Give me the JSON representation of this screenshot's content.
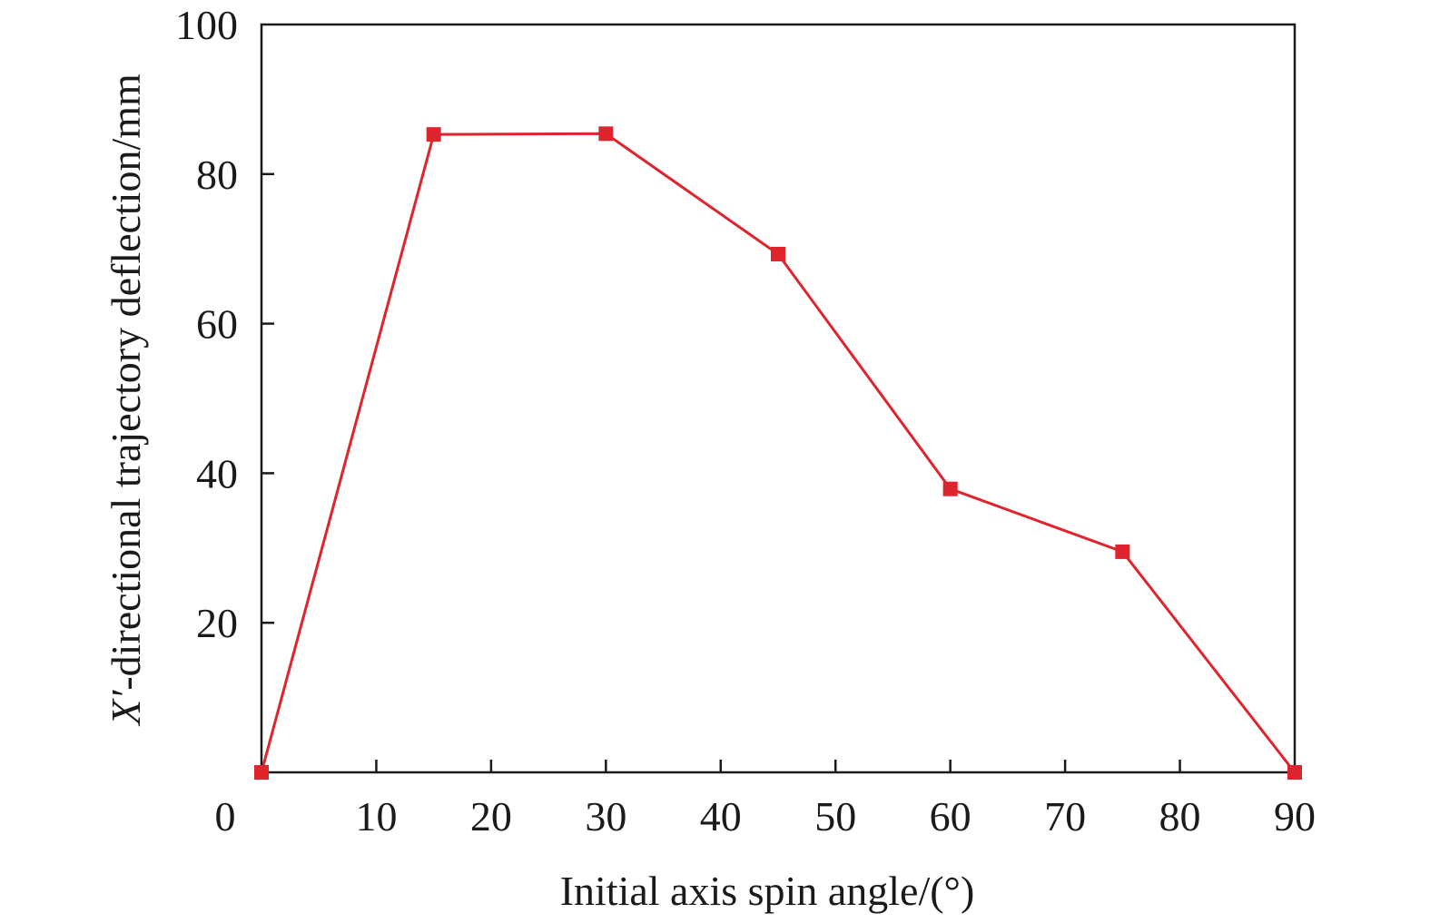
{
  "chart_data": {
    "type": "line",
    "title": "",
    "xlabel": "Initial axis spin angle/(°)",
    "ylabel_var": "X′",
    "ylabel_rest": "-directional trajectory deflection/mm",
    "xlim": [
      0,
      90
    ],
    "ylim": [
      0,
      100
    ],
    "xticks": [
      0,
      10,
      20,
      30,
      40,
      50,
      60,
      70,
      80,
      90
    ],
    "yticks": [
      20,
      40,
      60,
      80,
      100
    ],
    "grid": false,
    "legend": "none",
    "series": [
      {
        "color": "#e0242e",
        "marker": "square",
        "x": [
          0,
          15,
          30,
          45,
          60,
          75,
          90
        ],
        "y": [
          0,
          85.3,
          85.4,
          69.3,
          37.9,
          29.5,
          0
        ]
      }
    ]
  }
}
